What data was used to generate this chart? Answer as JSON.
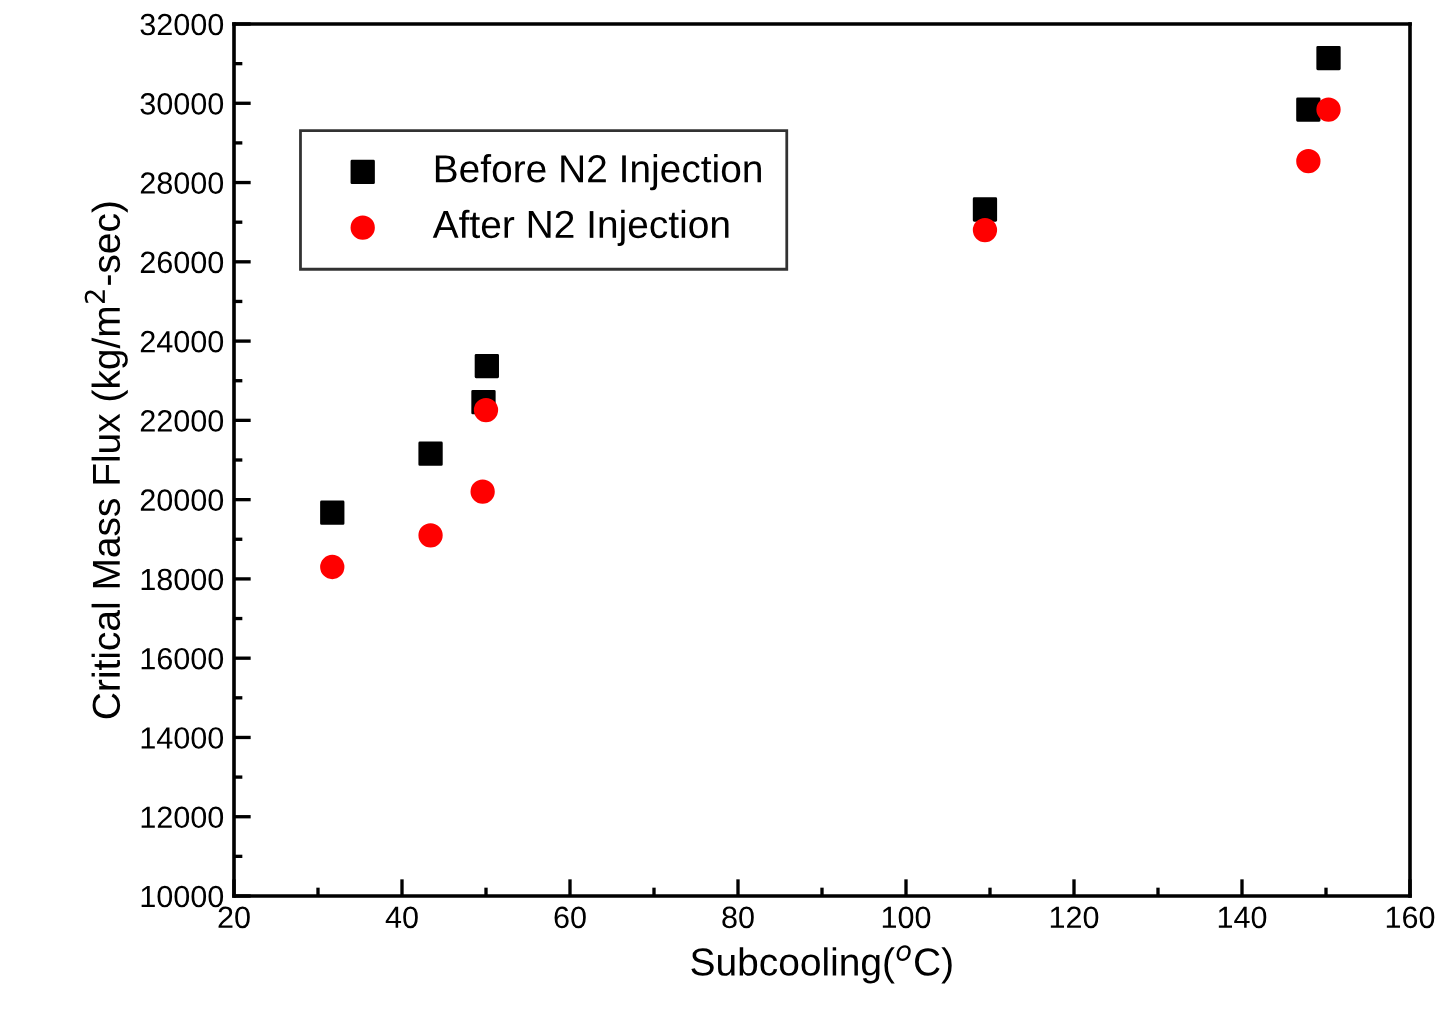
{
  "chart_data": {
    "type": "scatter",
    "xlabel": "Subcooling($^{o}$C)",
    "ylabel": "Critical Mass Flux (kg/m$^{2}$-sec)",
    "xlim": [
      20,
      160
    ],
    "xticks": [
      20,
      40,
      60,
      80,
      100,
      120,
      140,
      160
    ],
    "ylim": [
      10000,
      32000
    ],
    "yticks": [
      10000,
      12000,
      14000,
      16000,
      18000,
      20000,
      22000,
      24000,
      26000,
      28000,
      30000,
      32000
    ],
    "grid": false,
    "legend": "top left",
    "series": [
      {
        "name": "Before N2 Injection",
        "color": "#000000",
        "marker": "square",
        "x": [
          31.7,
          43.4,
          49.7,
          50.1,
          109.4,
          147.9,
          150.3
        ],
        "values": [
          19670,
          21160,
          22460,
          23370,
          27320,
          29840,
          31140
        ]
      },
      {
        "name": "After N2 Injection",
        "color": "#ff0000",
        "marker": "circle",
        "x": [
          31.7,
          43.4,
          49.6,
          50.0,
          109.4,
          147.9,
          150.3
        ],
        "values": [
          18300,
          19100,
          20200,
          22260,
          26800,
          28540,
          29840
        ]
      }
    ]
  }
}
